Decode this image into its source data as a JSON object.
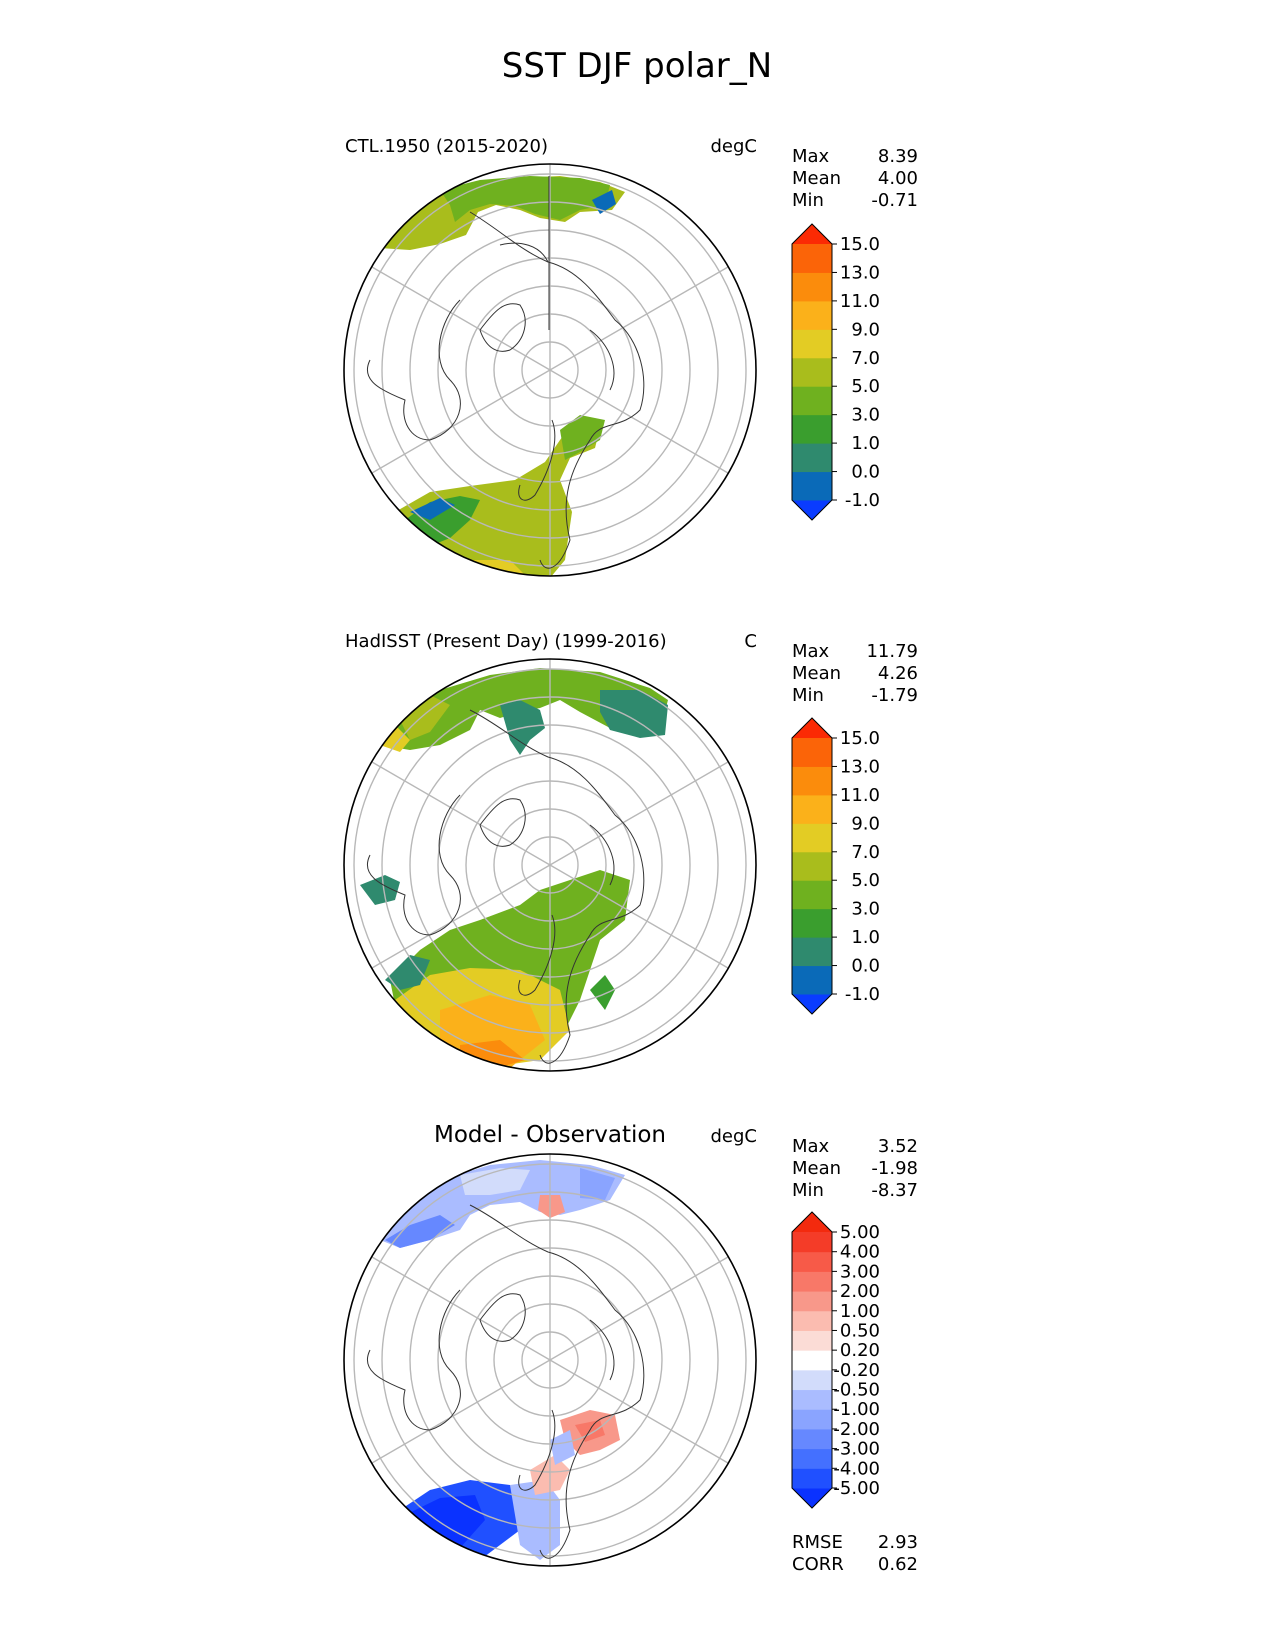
{
  "figure": {
    "title": "SST DJF polar_N"
  },
  "colors": {
    "land_outline": "#333333",
    "grid": "#b8b8b8",
    "boundary": "#000000",
    "sst_levels": [
      "#0a3cff",
      "#0a6ab8",
      "#2f8a6e",
      "#3a9e2e",
      "#6fb11f",
      "#a9bd1c",
      "#e3cc24",
      "#fbb11a",
      "#fb8c0c",
      "#fb6408",
      "#fb2a04"
    ],
    "diff_levels": [
      "#0a32ff",
      "#2050ff",
      "#4470ff",
      "#6688ff",
      "#8aa4ff",
      "#aabcff",
      "#d2dcfb",
      "#ffffff",
      "#fbdcd6",
      "#fbbcb0",
      "#f8988a",
      "#f87868",
      "#f75a48",
      "#f43c28",
      "#f32a0e"
    ]
  },
  "chart_data": [
    {
      "type": "map",
      "projection": "north-polar-stereographic",
      "panel": "top",
      "title": "CTL.1950 (2015-2020)",
      "units": "degC",
      "stats": [
        {
          "label": "Max",
          "value": "8.39"
        },
        {
          "label": "Mean",
          "value": "4.00"
        },
        {
          "label": "Min",
          "value": "-0.71"
        }
      ],
      "colorbar": {
        "levels": [
          -1.0,
          0.0,
          1.0,
          3.0,
          5.0,
          7.0,
          9.0,
          11.0,
          13.0,
          15.0
        ],
        "tick_labels": [
          "15.0",
          "13.0",
          "11.0",
          "9.0",
          "7.0",
          "5.0",
          "3.0",
          "1.0",
          "0.0",
          "-1.0"
        ],
        "extend": "both"
      }
    },
    {
      "type": "map",
      "projection": "north-polar-stereographic",
      "panel": "middle",
      "title": "HadISST (Present Day) (1999-2016)",
      "units": "C",
      "stats": [
        {
          "label": "Max",
          "value": "11.79"
        },
        {
          "label": "Mean",
          "value": "4.26"
        },
        {
          "label": "Min",
          "value": "-1.79"
        }
      ],
      "colorbar": {
        "levels": [
          -1.0,
          0.0,
          1.0,
          3.0,
          5.0,
          7.0,
          9.0,
          11.0,
          13.0,
          15.0
        ],
        "tick_labels": [
          "15.0",
          "13.0",
          "11.0",
          "9.0",
          "7.0",
          "5.0",
          "3.0",
          "1.0",
          "0.0",
          "-1.0"
        ],
        "extend": "both"
      }
    },
    {
      "type": "map",
      "projection": "north-polar-stereographic",
      "panel": "bottom",
      "title": "Model - Observation",
      "units": "degC",
      "stats": [
        {
          "label": "Max",
          "value": "3.52"
        },
        {
          "label": "Mean",
          "value": "-1.98"
        },
        {
          "label": "Min",
          "value": "-8.37"
        }
      ],
      "colorbar": {
        "levels": [
          -5.0,
          -4.0,
          -3.0,
          -2.0,
          -1.0,
          -0.5,
          -0.2,
          0.2,
          0.5,
          1.0,
          2.0,
          3.0,
          4.0,
          5.0
        ],
        "tick_labels": [
          "5.00",
          "4.00",
          "3.00",
          "2.00",
          "1.00",
          "0.50",
          "0.20",
          "-0.20",
          "-0.50",
          "-1.00",
          "-2.00",
          "-3.00",
          "-4.00",
          "-5.00"
        ],
        "extend": "both"
      },
      "metrics": [
        {
          "label": "RMSE",
          "value": "2.93"
        },
        {
          "label": "CORR",
          "value": "0.62"
        }
      ]
    }
  ]
}
